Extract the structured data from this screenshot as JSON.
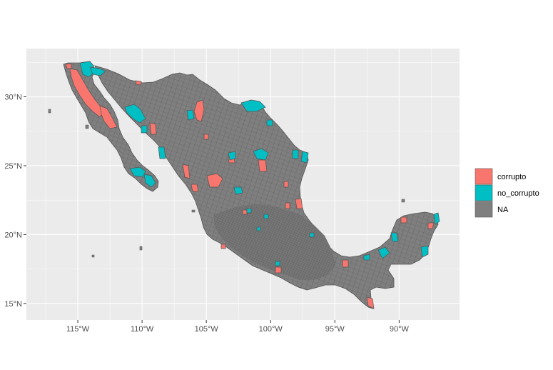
{
  "chart_data": {
    "type": "choropleth map",
    "x_axis": {
      "range": [
        -119,
        -85.3
      ],
      "ticks": [
        {
          "value": -115,
          "label": "115°W"
        },
        {
          "value": -110,
          "label": "110°W"
        },
        {
          "value": -105,
          "label": "105°W"
        },
        {
          "value": -100,
          "label": "100°W"
        },
        {
          "value": -95,
          "label": "95°W"
        },
        {
          "value": -90,
          "label": "90°W"
        }
      ]
    },
    "y_axis": {
      "range": [
        13.8,
        33.5
      ],
      "ticks": [
        {
          "value": 15,
          "label": "15°N"
        },
        {
          "value": 20,
          "label": "20°N"
        },
        {
          "value": 25,
          "label": "25°N"
        },
        {
          "value": 30,
          "label": "30°N"
        }
      ]
    },
    "grid": true,
    "legend": {
      "placement": "right",
      "items": [
        {
          "label": "corrupto",
          "color": "#F8766D"
        },
        {
          "label": "no_corrupto",
          "color": "#00BFC4"
        },
        {
          "label": "NA",
          "color": "#7F7F7F"
        }
      ]
    },
    "colors": {
      "panel": "#EBEBEB",
      "grid": "#FFFFFF",
      "region_fill": "#7F7F7F",
      "region_border": "#555555"
    },
    "highlighted_regions": [
      {
        "category": "corrupto",
        "lon": -115.0,
        "lat": 30.3
      },
      {
        "category": "corrupto",
        "lon": -114.0,
        "lat": 28.5
      },
      {
        "category": "corrupto",
        "lon": -106.2,
        "lat": 29.5
      },
      {
        "category": "corrupto",
        "lon": -106.5,
        "lat": 24.5
      },
      {
        "category": "corrupto",
        "lon": -104.8,
        "lat": 23.5
      },
      {
        "category": "corrupto",
        "lon": -100.9,
        "lat": 24.9
      },
      {
        "category": "corrupto",
        "lon": -97.9,
        "lat": 21.8
      },
      {
        "category": "corrupto",
        "lon": -94.6,
        "lat": 17.8
      },
      {
        "category": "corrupto",
        "lon": -92.4,
        "lat": 14.9
      },
      {
        "category": "no_corrupto",
        "lon": -114.6,
        "lat": 32.0
      },
      {
        "category": "no_corrupto",
        "lon": -111.8,
        "lat": 29.3
      },
      {
        "category": "no_corrupto",
        "lon": -101.8,
        "lat": 29.2
      },
      {
        "category": "no_corrupto",
        "lon": -97.6,
        "lat": 25.5
      },
      {
        "category": "no_corrupto",
        "lon": -101.3,
        "lat": 25.6
      },
      {
        "category": "no_corrupto",
        "lon": -110.4,
        "lat": 24.0
      },
      {
        "category": "no_corrupto",
        "lon": -91.4,
        "lat": 18.5
      },
      {
        "category": "no_corrupto",
        "lon": -87.6,
        "lat": 18.6
      },
      {
        "category": "no_corrupto",
        "lon": -87.0,
        "lat": 21.0
      }
    ]
  }
}
